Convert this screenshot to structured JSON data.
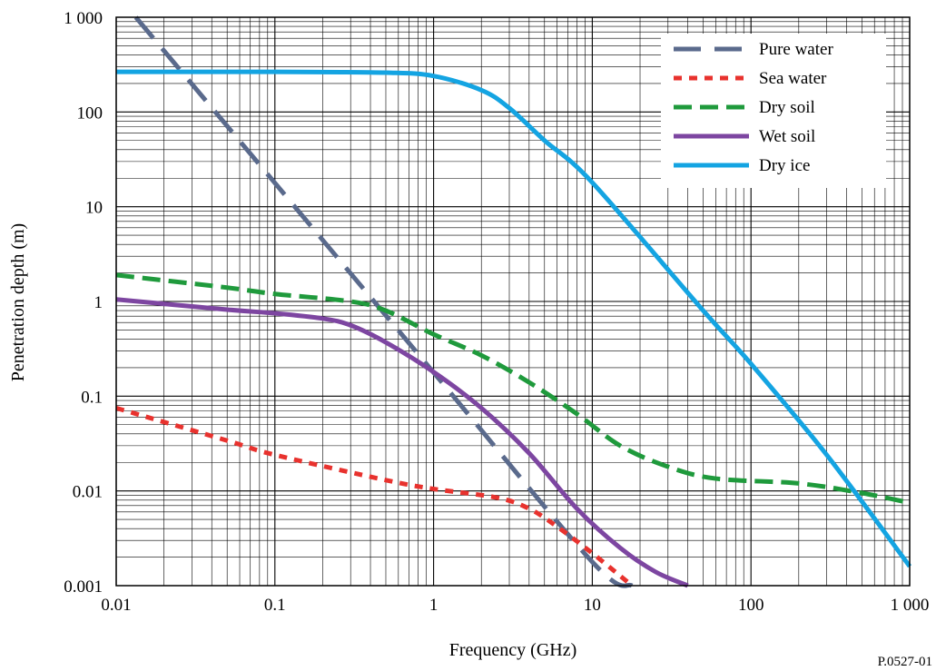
{
  "figure_id": "P.0527-01",
  "chart_data": {
    "type": "line",
    "xlabel": "Frequency (GHz)",
    "ylabel": "Penetration depth (m)",
    "x_scale": "log",
    "y_scale": "log",
    "xlim": [
      0.01,
      1000
    ],
    "ylim": [
      0.001,
      1000
    ],
    "grid": true,
    "legend_position": "top-right",
    "x_ticks": [
      {
        "value": 0.01,
        "label": "0.01"
      },
      {
        "value": 0.1,
        "label": "0.1"
      },
      {
        "value": 1,
        "label": "1"
      },
      {
        "value": 10,
        "label": "10"
      },
      {
        "value": 100,
        "label": "100"
      },
      {
        "value": 1000,
        "label": "1 000"
      }
    ],
    "y_ticks": [
      {
        "value": 0.001,
        "label": "0.001"
      },
      {
        "value": 0.01,
        "label": "0.01"
      },
      {
        "value": 0.1,
        "label": "0.1"
      },
      {
        "value": 1,
        "label": "1"
      },
      {
        "value": 10,
        "label": "10"
      },
      {
        "value": 100,
        "label": "100"
      },
      {
        "value": 1000,
        "label": "1 000"
      }
    ],
    "series": [
      {
        "name": "Pure water",
        "color": "#5a6a8c",
        "dash": "long-dash",
        "x": [
          0.0133,
          0.1,
          1,
          10,
          17.8
        ],
        "y": [
          1000,
          17.8,
          0.178,
          0.00178,
          0.001
        ]
      },
      {
        "name": "Sea water",
        "color": "#e8322e",
        "dash": "short-dash",
        "x": [
          0.01,
          0.05,
          0.1,
          0.5,
          1,
          2.5,
          4,
          6,
          10,
          17.8
        ],
        "y": [
          0.075,
          0.034,
          0.024,
          0.013,
          0.0105,
          0.0085,
          0.0065,
          0.0042,
          0.0022,
          0.001
        ]
      },
      {
        "name": "Dry soil",
        "color": "#1f9a3c",
        "dash": "medium-dash",
        "x": [
          0.01,
          0.05,
          0.1,
          0.3,
          0.5,
          1,
          2,
          4,
          8,
          15,
          30,
          60,
          200,
          500,
          1000
        ],
        "y": [
          1.9,
          1.4,
          1.2,
          1.0,
          0.8,
          0.45,
          0.27,
          0.14,
          0.065,
          0.03,
          0.018,
          0.0135,
          0.012,
          0.0095,
          0.0075
        ]
      },
      {
        "name": "Wet soil",
        "color": "#7d46a1",
        "dash": "solid",
        "x": [
          0.01,
          0.05,
          0.1,
          0.2,
          0.3,
          0.5,
          1,
          2,
          4,
          8,
          15,
          25,
          40
        ],
        "y": [
          1.05,
          0.82,
          0.75,
          0.66,
          0.56,
          0.37,
          0.18,
          0.075,
          0.025,
          0.0065,
          0.0025,
          0.0014,
          0.001
        ]
      },
      {
        "name": "Dry ice",
        "color": "#14a4e2",
        "dash": "solid",
        "x": [
          0.01,
          0.1,
          0.5,
          1,
          2,
          3,
          5,
          10,
          50,
          100,
          300,
          1000
        ],
        "y": [
          265,
          265,
          260,
          240,
          170,
          110,
          50,
          18,
          0.8,
          0.22,
          0.024,
          0.0016
        ]
      }
    ]
  }
}
